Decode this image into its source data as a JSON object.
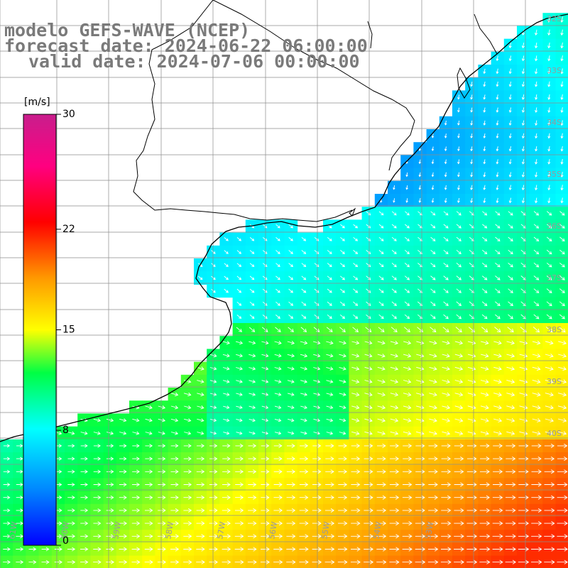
{
  "title": {
    "line1": "modelo GEFS-WAVE (NCEP)",
    "line2": "forecast date: 2024-06-22 06:00:00",
    "line3": "valid date: 2024-07-06 00:00:00"
  },
  "colorbar": {
    "unit": "[m/s]",
    "ticks": [
      {
        "label": "30",
        "value": 30
      },
      {
        "label": "22",
        "value": 22
      },
      {
        "label": "15",
        "value": 15
      },
      {
        "label": "8",
        "value": 8
      },
      {
        "label": "0",
        "value": 0
      }
    ]
  },
  "map": {
    "lon_labels": [
      "61W",
      "60W",
      "59W",
      "58W",
      "57W",
      "56W",
      "55W",
      "54W",
      "53W"
    ],
    "lat_labels": [
      "32S",
      "33S",
      "34S",
      "35S",
      "36S",
      "37S",
      "38S",
      "39S",
      "40S"
    ],
    "colors": {
      "land": "#ffffff",
      "grid": "#8c8c8c",
      "coast": "#000000",
      "label": "#9a9a9a",
      "arrow": "#ffffff"
    }
  }
}
